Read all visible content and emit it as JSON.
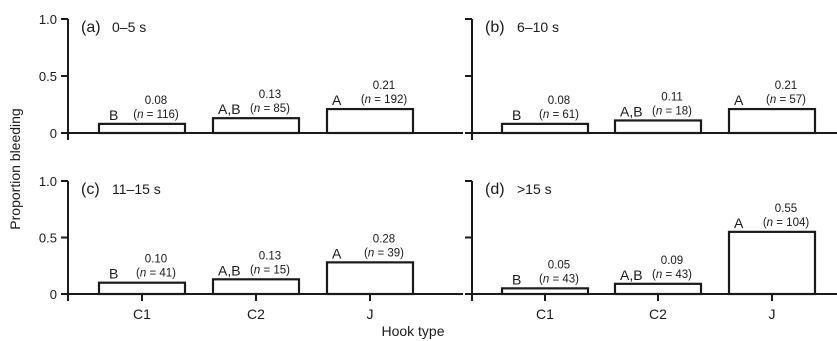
{
  "chart_data": {
    "type": "bar",
    "xlabel": "Hook type",
    "ylabel": "Proportion bleeding",
    "categories": [
      "C1",
      "C2",
      "J"
    ],
    "ylim": [
      0,
      1.0
    ],
    "yticks": [
      "0",
      "0.5",
      "1.0"
    ],
    "grid": false,
    "panels": [
      {
        "tag": "(a)",
        "title": "0–5 s",
        "values": [
          0.08,
          0.13,
          0.21
        ],
        "value_labels": [
          "0.08",
          "0.13",
          "0.21"
        ],
        "n_labels": [
          "(n = 116)",
          "(n = 85)",
          "(n = 192)"
        ],
        "groups": [
          "B",
          "A,B",
          "A"
        ]
      },
      {
        "tag": "(b)",
        "title": "6–10 s",
        "values": [
          0.08,
          0.11,
          0.21
        ],
        "value_labels": [
          "0.08",
          "0.11",
          "0.21"
        ],
        "n_labels": [
          "(n = 61)",
          "(n = 18)",
          "(n = 57)"
        ],
        "groups": [
          "B",
          "A,B",
          "A"
        ]
      },
      {
        "tag": "(c)",
        "title": "11–15 s",
        "values": [
          0.1,
          0.13,
          0.28
        ],
        "value_labels": [
          "0.10",
          "0.13",
          "0.28"
        ],
        "n_labels": [
          "(n = 41)",
          "(n = 15)",
          "(n = 39)"
        ],
        "groups": [
          "B",
          "A,B",
          "A"
        ]
      },
      {
        "tag": "(d)",
        "title": ">15 s",
        "values": [
          0.05,
          0.09,
          0.55
        ],
        "value_labels": [
          "0.05",
          "0.09",
          "0.55"
        ],
        "n_labels": [
          "(n = 43)",
          "(n = 43)",
          "(n = 104)"
        ],
        "groups": [
          "B",
          "A,B",
          "A"
        ]
      }
    ]
  }
}
